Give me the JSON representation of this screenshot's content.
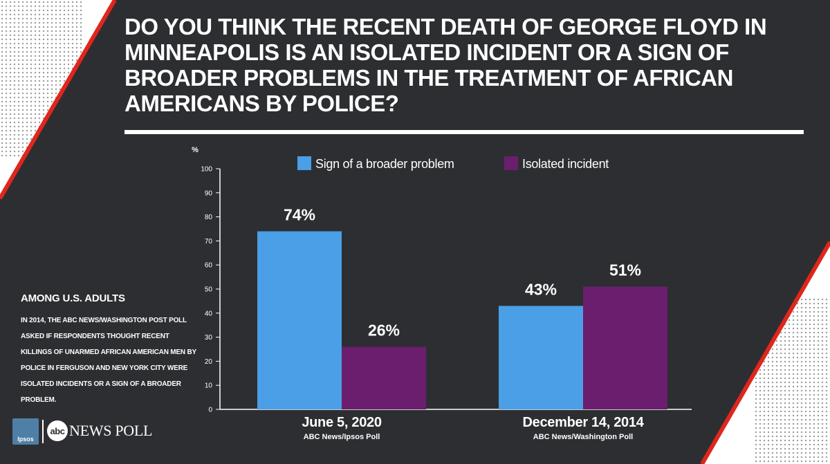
{
  "title": "DO YOU THINK THE RECENT DEATH OF GEORGE FLOYD IN MINNEAPOLIS IS AN ISOLATED INCIDENT OR A SIGN OF BROADER PROBLEMS IN THE TREATMENT OF AFRICAN AMERICANS BY POLICE?",
  "sidebar": {
    "heading": "AMONG U.S. ADULTS",
    "note": "IN 2014, THE ABC NEWS/WASHINGTON POST POLL ASKED IF RESPONDENTS THOUGHT RECENT KILLINGS OF UNARMED AFRICAN AMERICAN MEN BY POLICE IN FERGUSON AND NEW YORK CITY WERE ISOLATED INCIDENTS OR A SIGN OF A BROADER PROBLEM."
  },
  "logos": {
    "ipsos": "Ipsos",
    "abc": "abc",
    "news_poll": "NEWS POLL"
  },
  "colors": {
    "background": "#2d2e31",
    "accent_red": "#e0261c",
    "broader": "#4a9fe6",
    "isolated": "#6b1e6e",
    "text": "#ffffff"
  },
  "chart_data": {
    "type": "bar",
    "ylabel": "%",
    "ylim": [
      0,
      100
    ],
    "yticks": [
      0,
      10,
      20,
      30,
      40,
      50,
      60,
      70,
      80,
      90,
      100
    ],
    "grid": false,
    "legend_position": "top",
    "categories": [
      {
        "label": "June 5, 2020",
        "sublabel": "ABC News/Ipsos Poll"
      },
      {
        "label": "December 14, 2014",
        "sublabel": "ABC News/Washington Poll"
      }
    ],
    "series": [
      {
        "name": "Sign of a broader problem",
        "color": "#4a9fe6",
        "values": [
          74,
          43
        ],
        "labels": [
          "74%",
          "43%"
        ]
      },
      {
        "name": "Isolated incident",
        "color": "#6b1e6e",
        "values": [
          26,
          51
        ],
        "labels": [
          "26%",
          "51%"
        ]
      }
    ]
  }
}
